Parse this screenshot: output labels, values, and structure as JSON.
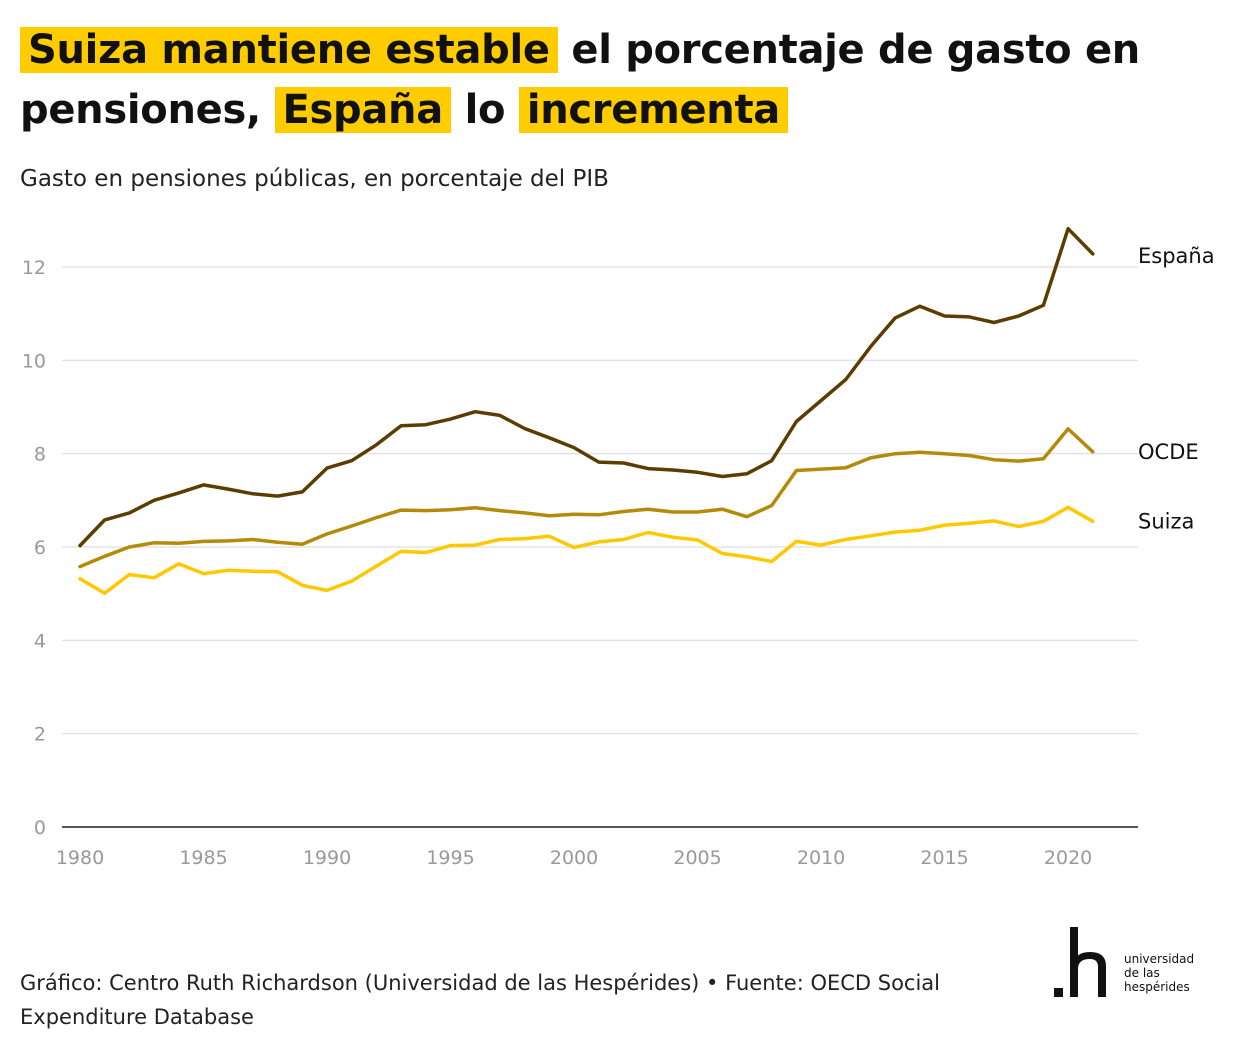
{
  "title": {
    "part1": "Suiza mantiene estable",
    "part2": "el porcentaje de gasto en pensiones,",
    "part3": "España",
    "part4": "lo",
    "part5": "incrementa"
  },
  "subtitle": "Gasto en pensiones públicas, en porcentaje del PIB",
  "footer": "Gráfico: Centro Ruth Richardson (Universidad de las Hespérides) • Fuente: OECD Social Expenditure Database",
  "logo": {
    "line1": "universidad",
    "line2": "de las",
    "line3": "hespérides"
  },
  "colors": {
    "highlight": "#FFCC00",
    "espana": "#5C3D00",
    "ocde": "#B38A0A",
    "suiza": "#FFC800",
    "grid": "#E3E3E3",
    "axis": "#222222",
    "tick": "#999999"
  },
  "chart_data": {
    "type": "line",
    "xlabel": "",
    "ylabel": "",
    "xlim": [
      1980,
      2021
    ],
    "ylim": [
      0,
      13
    ],
    "yticks": [
      "0",
      "2",
      "4",
      "6",
      "8",
      "10",
      "12"
    ],
    "xticks": [
      "1980",
      "1985",
      "1990",
      "1995",
      "2000",
      "2005",
      "2010",
      "2015",
      "2020"
    ],
    "grid": true,
    "x": [
      1980,
      1981,
      1982,
      1983,
      1984,
      1985,
      1986,
      1987,
      1988,
      1989,
      1990,
      1991,
      1992,
      1993,
      1994,
      1995,
      1996,
      1997,
      1998,
      1999,
      2000,
      2001,
      2002,
      2003,
      2004,
      2005,
      2006,
      2007,
      2008,
      2009,
      2010,
      2011,
      2012,
      2013,
      2014,
      2015,
      2016,
      2017,
      2018,
      2019,
      2020,
      2021
    ],
    "series": [
      {
        "name": "España",
        "color": "#5C3D00",
        "values": [
          6.03,
          6.58,
          6.73,
          7.0,
          7.16,
          7.33,
          7.24,
          7.14,
          7.09,
          7.18,
          7.69,
          7.85,
          8.19,
          8.6,
          8.62,
          8.74,
          8.9,
          8.82,
          8.54,
          8.34,
          8.13,
          7.82,
          7.8,
          7.68,
          7.65,
          7.6,
          7.51,
          7.57,
          7.85,
          8.69,
          9.14,
          9.59,
          10.29,
          10.91,
          11.16,
          10.95,
          10.93,
          10.81,
          10.95,
          11.18,
          12.82,
          12.28
        ]
      },
      {
        "name": "OCDE",
        "color": "#B38A0A",
        "values": [
          5.58,
          5.8,
          6.0,
          6.09,
          6.08,
          6.12,
          6.13,
          6.16,
          6.1,
          6.06,
          6.28,
          6.45,
          6.63,
          6.79,
          6.78,
          6.8,
          6.84,
          6.78,
          6.73,
          6.67,
          6.7,
          6.69,
          6.76,
          6.81,
          6.75,
          6.75,
          6.81,
          6.65,
          6.89,
          7.64,
          7.67,
          7.7,
          7.91,
          8.0,
          8.03,
          8.0,
          7.96,
          7.87,
          7.84,
          7.89,
          8.53,
          8.04
        ]
      },
      {
        "name": "Suiza",
        "color": "#FFC800",
        "values": [
          5.32,
          5.01,
          5.41,
          5.34,
          5.64,
          5.43,
          5.5,
          5.48,
          5.47,
          5.18,
          5.07,
          5.27,
          5.59,
          5.91,
          5.88,
          6.03,
          6.04,
          6.16,
          6.18,
          6.23,
          5.99,
          6.11,
          6.16,
          6.31,
          6.21,
          6.15,
          5.86,
          5.79,
          5.69,
          6.12,
          6.04,
          6.16,
          6.24,
          6.32,
          6.36,
          6.47,
          6.51,
          6.56,
          6.44,
          6.55,
          6.85,
          6.55
        ]
      }
    ]
  }
}
